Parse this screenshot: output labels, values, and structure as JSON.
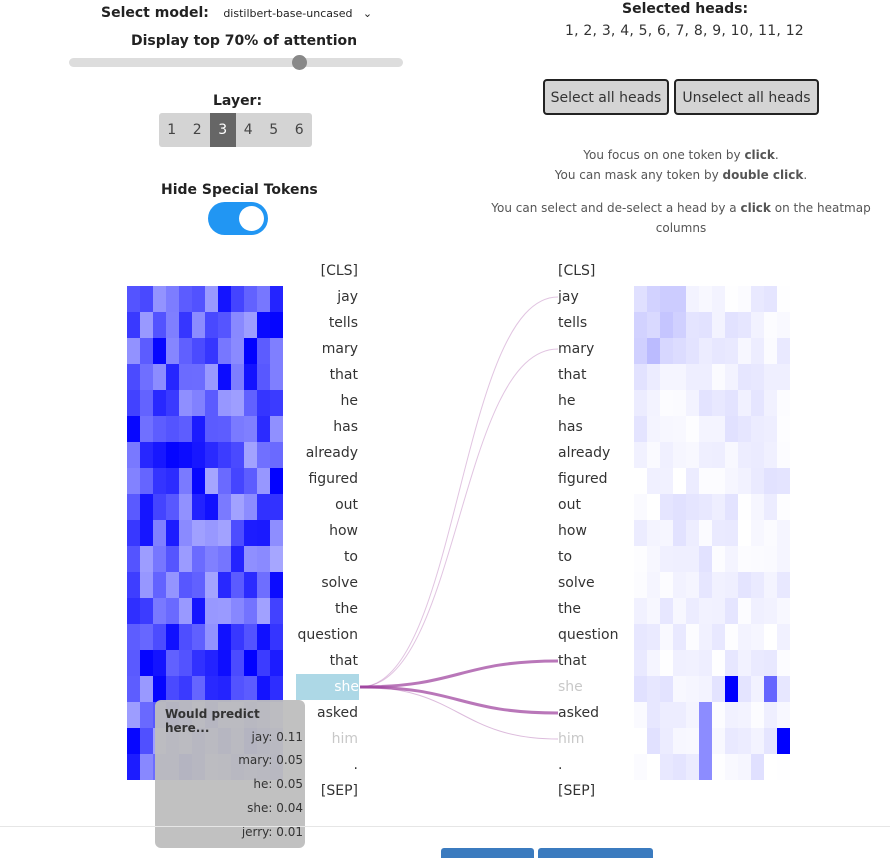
{
  "model": {
    "label": "Select model:",
    "selected": "distilbert-base-uncased",
    "chevron_icon": "chevron-down-icon"
  },
  "attention": {
    "label": "Display top 70% of attention",
    "threshold_fraction": 0.7
  },
  "layers": {
    "label": "Layer:",
    "items": [
      "1",
      "2",
      "3",
      "4",
      "5",
      "6"
    ],
    "active": "3"
  },
  "special_tokens": {
    "label": "Hide Special Tokens",
    "enabled": true
  },
  "heads": {
    "label": "Selected heads:",
    "selected_text": "1, 2, 3, 4, 5, 6, 7, 8, 9, 10, 11, 12"
  },
  "buttons": {
    "select_all": "Select all heads",
    "unselect_all": "Unselect all heads"
  },
  "instructions": {
    "line1_pre": "You focus on one token by ",
    "line1_bold": "click",
    "line1_post": ".",
    "line2_pre": "You can mask any token by ",
    "line2_bold": "double click",
    "line2_post": ".",
    "line3_pre": "You can select and de-select a head by a ",
    "line3_bold": "click",
    "line3_post": " on the heatmap columns"
  },
  "tokens": [
    "[CLS]",
    "jay",
    "tells",
    "mary",
    "that",
    "he",
    "has",
    "already",
    "figured",
    "out",
    "how",
    "to",
    "solve",
    "the",
    "question",
    "that",
    "she",
    "asked",
    "him",
    ".",
    "[SEP]"
  ],
  "focused_token_index": 16,
  "masked_token_indices": [
    18
  ],
  "tooltip": {
    "title": "Would predict here...",
    "predictions": [
      {
        "token": "jay",
        "score": "0.11"
      },
      {
        "token": "mary",
        "score": "0.05"
      },
      {
        "token": "he",
        "score": "0.05"
      },
      {
        "token": "she",
        "score": "0.04"
      },
      {
        "token": "jerry",
        "score": "0.01"
      }
    ]
  },
  "colors": {
    "accent": "#2196f3",
    "heat": "#0000ff",
    "link": "#9b3d9b",
    "focus": "#add8e6"
  }
}
